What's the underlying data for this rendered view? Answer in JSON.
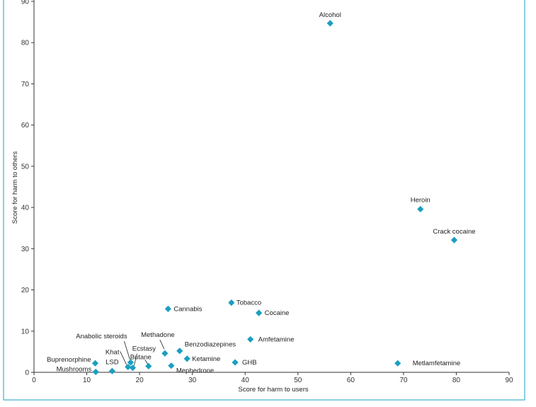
{
  "chart_data": {
    "type": "scatter",
    "xlabel": "Score for harm to users",
    "ylabel": "Score for harm to others",
    "xlim": [
      0,
      90
    ],
    "ylim": [
      0,
      90
    ],
    "xticks": [
      "0",
      "10",
      "20",
      "30",
      "40",
      "50",
      "60",
      "70",
      "80",
      "90"
    ],
    "yticks": [
      "0",
      "10",
      "20",
      "30",
      "40",
      "50",
      "60",
      "70",
      "80",
      "90"
    ],
    "grid": false,
    "marker_color": "#1a9fc0",
    "points": [
      {
        "label": "Alcohol",
        "x": 56.1,
        "y": 84.7
      },
      {
        "label": "Heroin",
        "x": 73.2,
        "y": 39.6
      },
      {
        "label": "Crack cocaine",
        "x": 79.6,
        "y": 32.1
      },
      {
        "label": "Tobacco",
        "x": 37.4,
        "y": 16.9
      },
      {
        "label": "Cocaine",
        "x": 42.6,
        "y": 14.4
      },
      {
        "label": "Cannabis",
        "x": 25.4,
        "y": 15.4
      },
      {
        "label": "Amfetamine",
        "x": 41.0,
        "y": 8.0
      },
      {
        "label": "Metlamfetamine",
        "x": 68.9,
        "y": 2.2
      },
      {
        "label": "GHB",
        "x": 38.1,
        "y": 2.4
      },
      {
        "label": "Ketamine",
        "x": 29.0,
        "y": 3.3
      },
      {
        "label": "Benzodiazepines",
        "x": 27.6,
        "y": 5.2
      },
      {
        "label": "Methadone",
        "x": 24.8,
        "y": 4.6
      },
      {
        "label": "Mephedrone",
        "x": 26.0,
        "y": 1.6
      },
      {
        "label": "Butane",
        "x": 21.7,
        "y": 1.5
      },
      {
        "label": "Ecstasy",
        "x": 18.7,
        "y": 1.1
      },
      {
        "label": "Khat",
        "x": 17.8,
        "y": 1.3
      },
      {
        "label": "Anabolic steroids",
        "x": 18.3,
        "y": 2.4
      },
      {
        "label": "LSD",
        "x": 14.8,
        "y": 0.3
      },
      {
        "label": "Buprenorphine",
        "x": 11.6,
        "y": 2.2
      },
      {
        "label": "Mushrooms",
        "x": 11.7,
        "y": 0.1
      }
    ]
  }
}
